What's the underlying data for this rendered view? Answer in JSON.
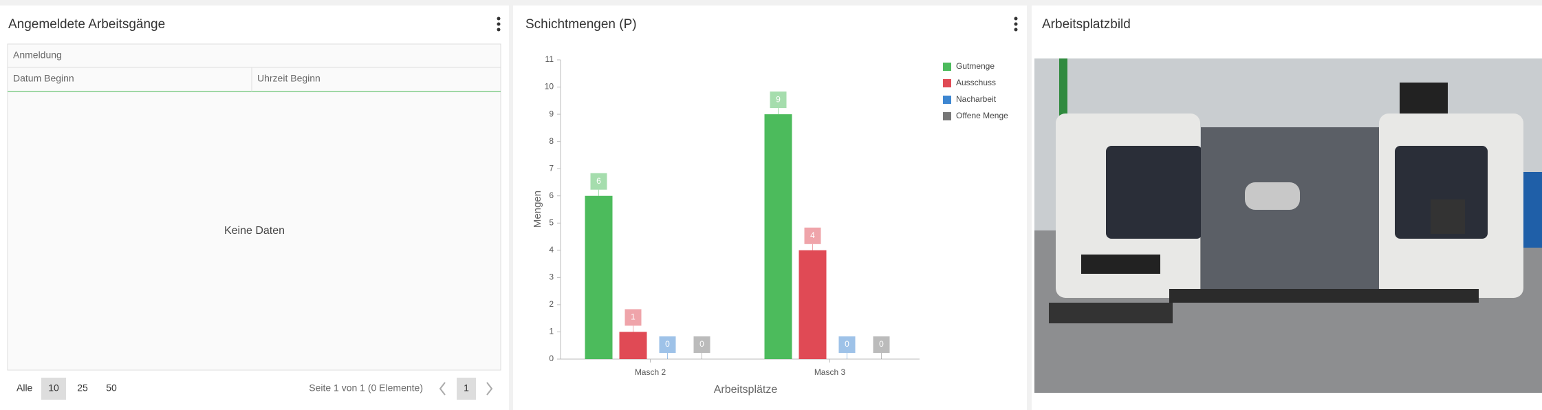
{
  "panels": {
    "left": {
      "title": "Angemeldete Arbeitsgänge",
      "table": {
        "group_header": "Anmeldung",
        "columns": [
          "Datum Beginn",
          "Uhrzeit Beginn"
        ],
        "empty_text": "Keine Daten"
      },
      "pager": {
        "sizes": [
          "Alle",
          "10",
          "25",
          "50"
        ],
        "info": "Seite 1 von 1 (0 Elemente)",
        "page": "1"
      }
    },
    "right": {
      "title": "Arbeitsplatzbild"
    }
  },
  "chart_data": {
    "type": "bar",
    "title": "Schichtmengen (P)",
    "x_label": "Arbeitsplätze",
    "y_label": "Mengen",
    "categories": [
      "Masch 2",
      "Masch 3"
    ],
    "series": [
      {
        "name": "Gutmenge",
        "color": "#4cbb5c",
        "values": [
          6,
          9
        ]
      },
      {
        "name": "Ausschuss",
        "color": "#e04a55",
        "values": [
          1,
          4
        ]
      },
      {
        "name": "Nacharbeit",
        "color": "#3d86d1",
        "values": [
          0,
          0
        ]
      },
      {
        "name": "Offene Menge",
        "color": "#777777",
        "values": [
          0,
          0
        ]
      }
    ],
    "ylim": [
      0,
      11
    ],
    "yticks": [
      0,
      1,
      2,
      3,
      4,
      5,
      6,
      7,
      8,
      9,
      10,
      11
    ],
    "legend": "top-right"
  }
}
